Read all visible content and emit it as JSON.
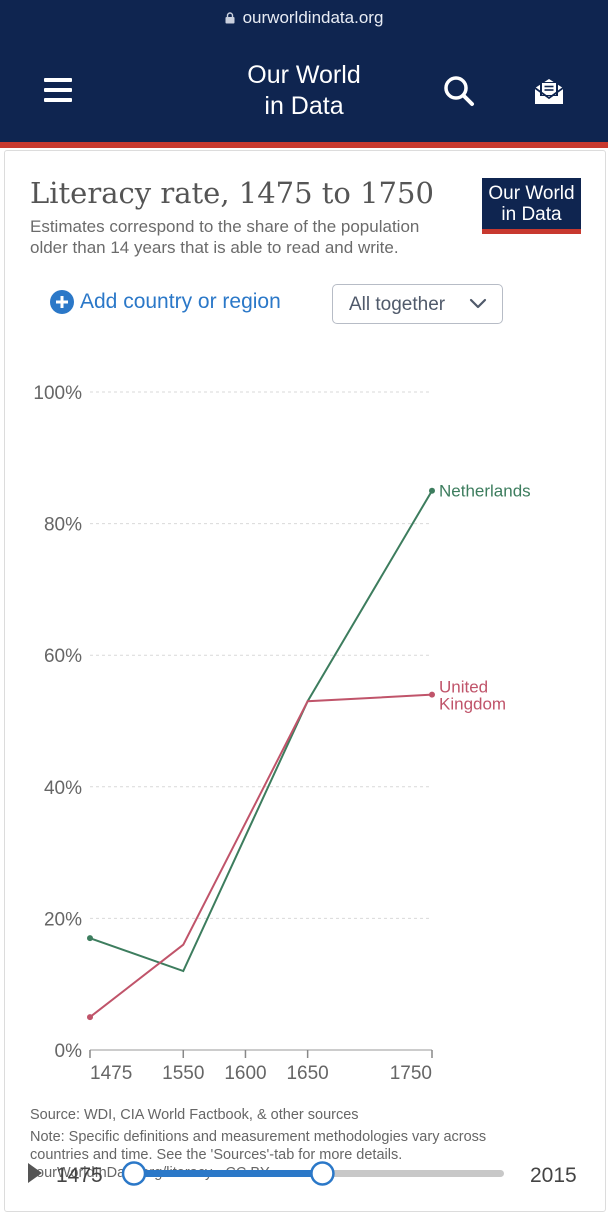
{
  "browser": {
    "url": "ourworldindata.org"
  },
  "header": {
    "brand_line1": "Our World",
    "brand_line2": "in Data",
    "menu_icon": "hamburger-icon",
    "search_icon": "search-icon",
    "newsletter_icon": "envelope-icon"
  },
  "logo": {
    "line1": "Our World",
    "line2": "in Data"
  },
  "controls": {
    "add_country_label": "Add country or region",
    "view_mode": "All together"
  },
  "footer": {
    "source": "Source: WDI, CIA World Factbook, & other sources",
    "note_line1": "Note: Specific definitions and measurement methodologies vary across",
    "note_line2": "countries and time. See the 'Sources'-tab for more details.",
    "license_fragment": "ourWorldInData.org/literacy • CC BY"
  },
  "timeline": {
    "start": "1475",
    "end": "2015",
    "selected_range": [
      1475,
      1750
    ]
  },
  "colors": {
    "netherlands": "#3d7d5e",
    "united_kingdom": "#c0546a",
    "nav_bg": "#0f2550",
    "accent_red": "#c8392f",
    "link_blue": "#2b78c8"
  },
  "chart_data": {
    "type": "line",
    "title": "Literacy rate, 1475 to 1750",
    "subtitle": "Estimates correspond to the share of the population older than 14 years that is able to read and write.",
    "xlabel": "",
    "ylabel": "",
    "xlim": [
      1475,
      1750
    ],
    "ylim": [
      0,
      100
    ],
    "x_ticks": [
      1475,
      1550,
      1600,
      1650,
      1750
    ],
    "y_ticks": [
      "0%",
      "20%",
      "40%",
      "60%",
      "80%",
      "100%"
    ],
    "y_tick_values": [
      0,
      20,
      40,
      60,
      80,
      100
    ],
    "grid": true,
    "series": [
      {
        "name": "Netherlands",
        "label_lines": [
          "Netherlands"
        ],
        "x": [
          1475,
          1550,
          1650,
          1750
        ],
        "values": [
          17,
          12,
          53,
          85
        ]
      },
      {
        "name": "United Kingdom",
        "label_lines": [
          "United",
          "Kingdom"
        ],
        "x": [
          1475,
          1550,
          1650,
          1750
        ],
        "values": [
          5,
          16,
          53,
          54
        ]
      }
    ]
  }
}
